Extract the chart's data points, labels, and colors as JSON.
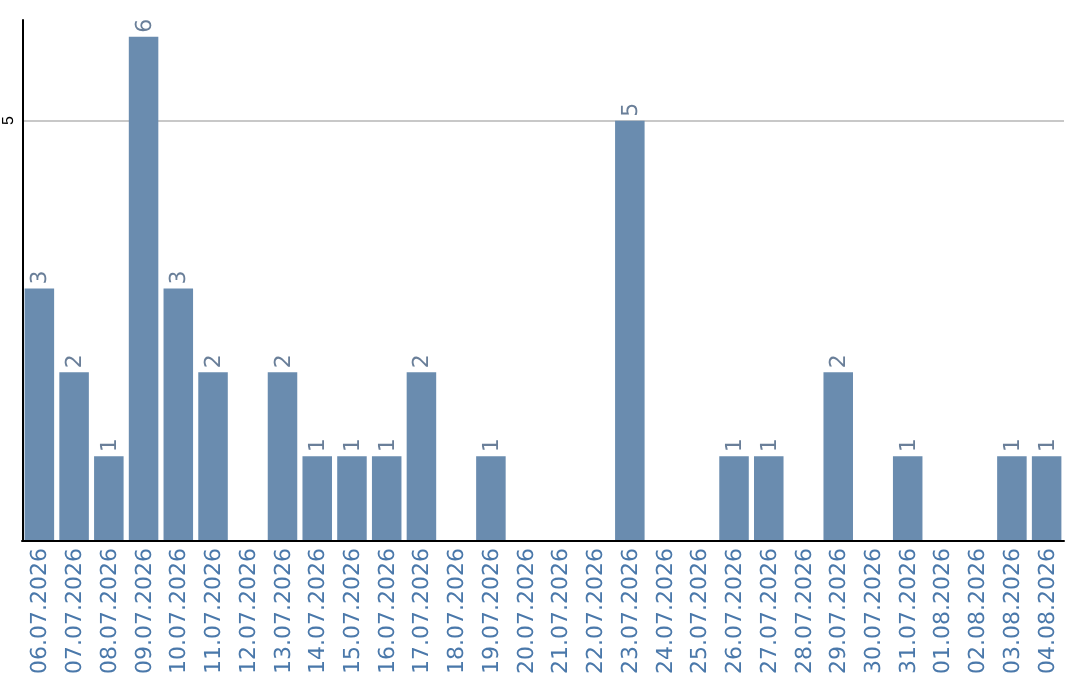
{
  "chart_data": {
    "type": "bar",
    "categories": [
      "06.07.2026",
      "07.07.2026",
      "08.07.2026",
      "09.07.2026",
      "10.07.2026",
      "11.07.2026",
      "12.07.2026",
      "13.07.2026",
      "14.07.2026",
      "15.07.2026",
      "16.07.2026",
      "17.07.2026",
      "18.07.2026",
      "19.07.2026",
      "20.07.2026",
      "21.07.2026",
      "22.07.2026",
      "23.07.2026",
      "24.07.2026",
      "25.07.2026",
      "26.07.2026",
      "27.07.2026",
      "28.07.2026",
      "29.07.2026",
      "30.07.2026",
      "31.07.2026",
      "01.08.2026",
      "02.08.2026",
      "03.08.2026",
      "04.08.2026"
    ],
    "values": [
      3,
      2,
      1,
      6,
      3,
      2,
      0,
      2,
      1,
      1,
      1,
      2,
      0,
      1,
      0,
      0,
      0,
      5,
      0,
      0,
      1,
      1,
      0,
      2,
      0,
      1,
      0,
      0,
      1,
      1
    ],
    "value_labels": [
      "3",
      "2",
      "1",
      "6",
      "3",
      "2",
      null,
      "2",
      "1",
      "1",
      "1",
      "2",
      null,
      "1",
      null,
      null,
      null,
      "5",
      null,
      null,
      "1",
      "1",
      null,
      "2",
      null,
      "1",
      null,
      null,
      "1",
      "1"
    ],
    "color": "#6a8caf",
    "ylim": [
      0,
      6.2
    ],
    "yticks": [
      5
    ],
    "grid": "y"
  }
}
